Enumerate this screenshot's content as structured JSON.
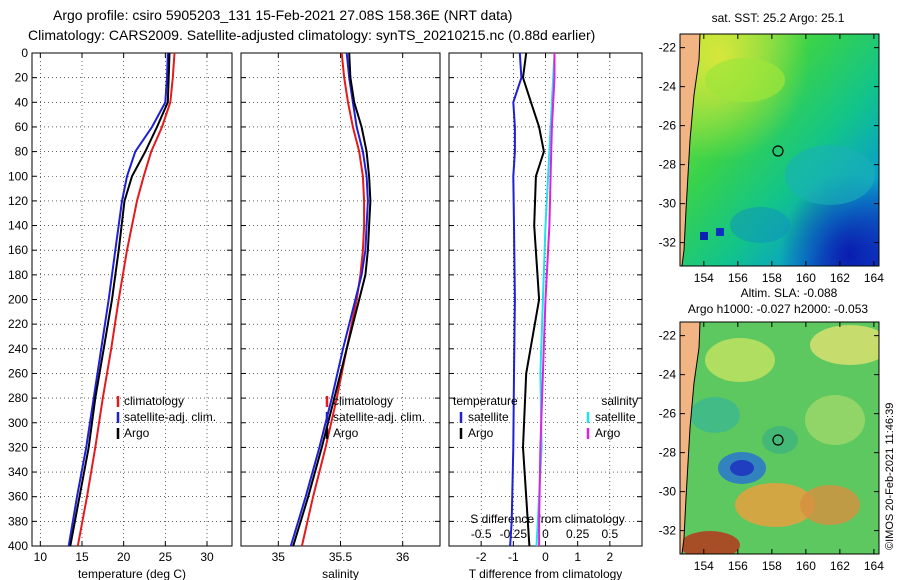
{
  "header": {
    "line1": "Argo profile: csiro 5905203_131 15-Feb-2021 27.08S 158.36E (NRT data)",
    "line2": "Climatology: CARS2009. Satellite-adjusted climatology: synTS_20210215.nc (0.88d earlier)"
  },
  "colors": {
    "climatology": "#e41a1c",
    "satellite": "#1f1fd6",
    "argo": "#000000",
    "salinity_sat": "#22e0ee",
    "salinity_argo": "#e020e0",
    "land": "#f2b483"
  },
  "chart_data": [
    {
      "type": "line",
      "id": "temperature_profile",
      "xlabel": "temperature (deg C)",
      "ylabel": "",
      "xlim": [
        9,
        33
      ],
      "ylim": [
        0,
        400
      ],
      "x_ticks": [
        10,
        15,
        20,
        25,
        30
      ],
      "y_ticks": [
        0,
        20,
        40,
        60,
        80,
        100,
        120,
        140,
        160,
        180,
        200,
        220,
        240,
        260,
        280,
        300,
        320,
        340,
        360,
        380,
        400
      ],
      "grid": true,
      "legend": {
        "position": "lower-right",
        "entries": [
          "climatology",
          "satellite-adj. clim.",
          "Argo"
        ]
      },
      "series": [
        {
          "name": "climatology",
          "color_key": "climatology",
          "depth": [
            0,
            20,
            40,
            60,
            80,
            100,
            120,
            160,
            200,
            240,
            280,
            320,
            360,
            400
          ],
          "values": [
            26.1,
            25.9,
            25.6,
            24.6,
            23.3,
            22.4,
            21.6,
            20.4,
            19.4,
            18.5,
            17.5,
            16.6,
            15.6,
            14.5
          ]
        },
        {
          "name": "satellite-adj. clim.",
          "color_key": "satellite",
          "depth": [
            0,
            20,
            40,
            60,
            80,
            100,
            120,
            160,
            200,
            240,
            280,
            320,
            360,
            400
          ],
          "values": [
            25.3,
            25.2,
            25.0,
            23.4,
            21.4,
            20.4,
            19.8,
            19.0,
            18.2,
            17.3,
            16.4,
            15.5,
            14.4,
            13.4
          ]
        },
        {
          "name": "Argo",
          "color_key": "argo",
          "depth": [
            0,
            20,
            40,
            60,
            80,
            100,
            120,
            160,
            200,
            240,
            280,
            320,
            360,
            400
          ],
          "values": [
            25.5,
            25.4,
            25.3,
            24.0,
            22.6,
            21.0,
            20.1,
            19.4,
            18.6,
            17.6,
            16.6,
            15.8,
            14.7,
            13.6
          ]
        }
      ]
    },
    {
      "type": "line",
      "id": "salinity_profile",
      "xlabel": "salinity",
      "ylabel": "",
      "xlim": [
        34.7,
        36.3
      ],
      "ylim": [
        0,
        400
      ],
      "x_ticks": [
        35,
        35.5,
        36
      ],
      "x_tick_labels": [
        "35",
        "35.5",
        "36"
      ],
      "grid": true,
      "legend": {
        "position": "lower-right",
        "entries": [
          "climatology",
          "satellite-adj. clim.",
          "Argo"
        ]
      },
      "series": [
        {
          "name": "climatology",
          "color_key": "climatology",
          "depth": [
            0,
            20,
            40,
            60,
            80,
            100,
            120,
            140,
            160,
            180,
            200,
            240,
            280,
            320,
            360,
            400
          ],
          "values": [
            35.51,
            35.53,
            35.56,
            35.6,
            35.65,
            35.68,
            35.69,
            35.69,
            35.68,
            35.66,
            35.63,
            35.55,
            35.47,
            35.38,
            35.28,
            35.19
          ]
        },
        {
          "name": "satellite-adj. clim.",
          "color_key": "satellite",
          "depth": [
            0,
            20,
            40,
            60,
            80,
            100,
            120,
            140,
            160,
            180,
            200,
            240,
            280,
            320,
            360,
            400
          ],
          "values": [
            35.55,
            35.57,
            35.6,
            35.63,
            35.68,
            35.71,
            35.72,
            35.71,
            35.7,
            35.67,
            35.62,
            35.52,
            35.43,
            35.33,
            35.22,
            35.1
          ]
        },
        {
          "name": "Argo",
          "color_key": "argo",
          "depth": [
            0,
            20,
            40,
            60,
            80,
            100,
            120,
            140,
            160,
            180,
            200,
            240,
            280,
            320,
            360,
            400
          ],
          "values": [
            35.57,
            35.58,
            35.61,
            35.67,
            35.71,
            35.73,
            35.74,
            35.73,
            35.72,
            35.7,
            35.65,
            35.55,
            35.45,
            35.35,
            35.24,
            35.12
          ]
        }
      ]
    },
    {
      "type": "line",
      "id": "difference_profile",
      "xlabel": "T difference from climatology",
      "xlabel_top": "S difference from climatology",
      "xlim": [
        -3,
        3
      ],
      "ylim": [
        0,
        400
      ],
      "x_ticks": [
        -2,
        -1,
        0,
        1,
        2
      ],
      "x_top_ticks": [
        -0.5,
        -0.25,
        0,
        0.25,
        0.5
      ],
      "x_top_tick_labels": [
        "-0.5",
        "-0.25",
        "0",
        "0.25",
        "0.5"
      ],
      "grid": true,
      "legend": {
        "temperature": {
          "title": "temperature",
          "entries": [
            "satellite",
            "Argo"
          ]
        },
        "salinity": {
          "title": "salinity",
          "entries": [
            "satellite",
            "Argo"
          ]
        }
      },
      "series": [
        {
          "name": "temperature satellite",
          "color_key": "satellite",
          "depth": [
            0,
            20,
            40,
            60,
            80,
            100,
            140,
            200,
            260,
            320,
            380,
            400
          ],
          "values": [
            -0.8,
            -0.75,
            -1.0,
            -0.95,
            -0.95,
            -1.0,
            -0.98,
            -0.95,
            -0.98,
            -1.0,
            -1.05,
            -1.1
          ]
        },
        {
          "name": "temperature Argo",
          "color_key": "argo",
          "depth": [
            0,
            20,
            40,
            60,
            80,
            100,
            140,
            200,
            260,
            320,
            380,
            400
          ],
          "values": [
            -0.6,
            -0.7,
            -0.45,
            -0.2,
            -0.05,
            -0.3,
            -0.35,
            -0.2,
            -0.6,
            -0.7,
            -0.55,
            -0.5
          ]
        },
        {
          "name": "salinity satellite",
          "color_key": "salinity_sat",
          "depth": [
            0,
            20,
            40,
            60,
            100,
            140,
            200,
            260,
            320,
            380,
            400
          ],
          "values": [
            0.07,
            0.06,
            0.05,
            0.04,
            0.02,
            0.0,
            -0.02,
            -0.04,
            -0.03,
            -0.06,
            -0.07
          ]
        },
        {
          "name": "salinity Argo",
          "color_key": "salinity_argo",
          "depth": [
            0,
            20,
            40,
            60,
            100,
            140,
            200,
            260,
            320,
            380,
            400
          ],
          "values": [
            0.07,
            0.07,
            0.06,
            0.05,
            0.04,
            0.03,
            0.0,
            -0.02,
            -0.04,
            -0.05,
            -0.05
          ]
        }
      ]
    },
    {
      "type": "heatmap",
      "id": "sst_map",
      "title": "sat. SST: 25.2 Argo: 25.1",
      "x_ticks": [
        154,
        156,
        158,
        160,
        162,
        164
      ],
      "y_ticks": [
        -22,
        -24,
        -26,
        -28,
        -30,
        -32
      ],
      "xlim": [
        152.6,
        164.3
      ],
      "ylim": [
        -33.2,
        -21.3
      ],
      "marker": {
        "lon": 158.36,
        "lat": -27.08
      }
    },
    {
      "type": "heatmap",
      "id": "sla_map",
      "title_line1": "Altim. SLA: -0.088",
      "title_line2": "Argo h1000: -0.027 h2000: -0.053",
      "x_ticks": [
        154,
        156,
        158,
        160,
        162,
        164
      ],
      "y_ticks": [
        -22,
        -24,
        -26,
        -28,
        -30,
        -32
      ],
      "xlim": [
        152.6,
        164.3
      ],
      "ylim": [
        -33.2,
        -21.3
      ],
      "marker": {
        "lon": 158.36,
        "lat": -27.08
      }
    }
  ],
  "footer": {
    "credit": "©IMOS 20-Feb-2021 11:46:39"
  }
}
